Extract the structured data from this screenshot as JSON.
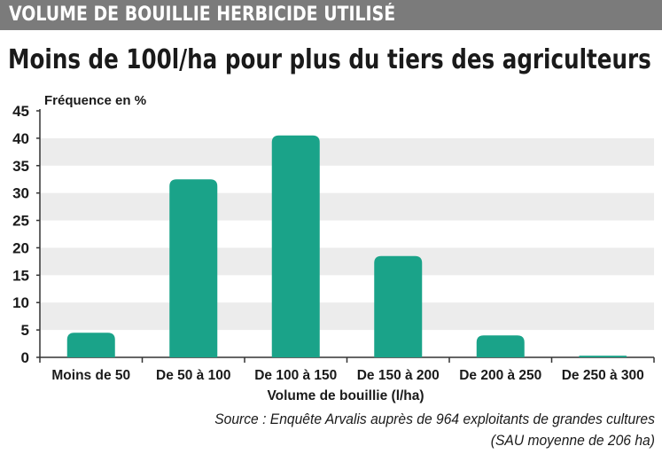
{
  "banner": {
    "title": "VOLUME DE BOUILLIE HERBICIDE UTILISÉ"
  },
  "headline": "Moins de 100l/ha pour plus du tiers des agriculteurs",
  "source": {
    "line1": "Source : Enquête Arvalis auprès de 964 exploitants de grandes cultures",
    "line2": "(SAU moyenne de 206 ha)"
  },
  "colors": {
    "bar": "#1aa389",
    "grid_band": "#ececec",
    "banner_bg": "#7b7b7b"
  },
  "chart_data": {
    "type": "bar",
    "categories": [
      "Moins de 50",
      "De 50 à 100",
      "De 100 à 150",
      "De 150 à 200",
      "De 200 à 250",
      "De 250 à 300"
    ],
    "values": [
      4.5,
      32.5,
      40.5,
      18.5,
      4,
      0.3
    ],
    "xlabel": "Volume de bouillie (l/ha)",
    "ylabel": "Fréquence en %",
    "ylim": [
      0,
      45
    ],
    "yticks": [
      0,
      5,
      10,
      15,
      20,
      25,
      30,
      35,
      40,
      45
    ],
    "grid": "alternating horizontal bands"
  }
}
